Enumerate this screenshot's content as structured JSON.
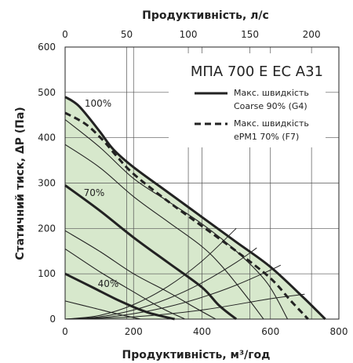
{
  "chart_data": {
    "type": "line",
    "title": "МПА 700 Е ЕС А31",
    "xlabel": "Продуктивність, м³/год",
    "x2label": "Продуктивність, л/с",
    "ylabel": "Статичний тиск, ΔP (Па)",
    "xlim": [
      0,
      800
    ],
    "ylim": [
      0,
      600
    ],
    "x2lim": [
      0,
      222.2
    ],
    "x_ticks": [
      "0",
      "200",
      "400",
      "600",
      "800"
    ],
    "x_tick_values": [
      0,
      200,
      400,
      600,
      800
    ],
    "x2_ticks": [
      "0",
      "50",
      "100",
      "150",
      "200"
    ],
    "x2_tick_values": [
      0,
      50,
      100,
      150,
      200
    ],
    "y_ticks": [
      "0",
      "100",
      "200",
      "300",
      "400",
      "500",
      "600"
    ],
    "y_tick_values": [
      0,
      100,
      200,
      300,
      400,
      500,
      600
    ],
    "grid": true,
    "legend_position": "top-right",
    "fill_color": "#d7e8cc",
    "series": [
      {
        "name": "Макс. швидкість Coarse 90% (G4)",
        "style": "solid-bold",
        "label": "100%",
        "x": [
          0,
          40,
          100,
          140,
          200,
          300,
          400,
          500,
          600,
          700,
          760
        ],
        "y": [
          490,
          470,
          415,
          375,
          335,
          280,
          225,
          170,
          115,
          45,
          0
        ]
      },
      {
        "name": "Макс. швидкість ePM1 70% (F7)",
        "style": "dashed-bold",
        "label": "",
        "x": [
          0,
          60,
          110,
          150,
          200,
          300,
          400,
          500,
          600,
          660,
          710
        ],
        "y": [
          455,
          430,
          395,
          360,
          320,
          260,
          205,
          150,
          90,
          40,
          0
        ]
      },
      {
        "name": "",
        "style": "thin",
        "label": "",
        "x": [
          0,
          100,
          200,
          300,
          400,
          500,
          590,
          650
        ],
        "y": [
          440,
          380,
          310,
          260,
          210,
          150,
          80,
          0
        ]
      },
      {
        "name": "",
        "style": "thin",
        "label": "",
        "x": [
          0,
          100,
          200,
          300,
          400,
          460,
          530,
          580
        ],
        "y": [
          385,
          335,
          270,
          215,
          160,
          115,
          50,
          0
        ]
      },
      {
        "name": "",
        "style": "bold",
        "label": "70%",
        "x": [
          0,
          100,
          200,
          300,
          400,
          450,
          500
        ],
        "y": [
          295,
          240,
          180,
          125,
          70,
          30,
          0
        ]
      },
      {
        "name": "",
        "style": "thin",
        "label": "",
        "x": [
          0,
          100,
          200,
          300,
          380,
          440
        ],
        "y": [
          195,
          150,
          100,
          60,
          25,
          0
        ]
      },
      {
        "name": "",
        "style": "thin",
        "label": "",
        "x": [
          0,
          100,
          200,
          280,
          350
        ],
        "y": [
          155,
          105,
          60,
          25,
          0
        ]
      },
      {
        "name": "",
        "style": "bold",
        "label": "40%",
        "x": [
          0,
          80,
          160,
          240,
          320
        ],
        "y": [
          100,
          70,
          40,
          15,
          0
        ]
      },
      {
        "name": "",
        "style": "thin",
        "label": "",
        "x": [
          0,
          80,
          160,
          220
        ],
        "y": [
          40,
          25,
          10,
          0
        ]
      }
    ],
    "system_curves": [
      {
        "x": [
          0,
          100,
          200,
          300,
          400,
          500
        ],
        "y": [
          0,
          8,
          32,
          72,
          128,
          200
        ]
      },
      {
        "x": [
          0,
          100,
          200,
          300,
          400,
          500,
          560
        ],
        "y": [
          0,
          5,
          20,
          45,
          80,
          125,
          157
        ]
      },
      {
        "x": [
          0,
          100,
          200,
          300,
          400,
          500,
          600,
          630
        ],
        "y": [
          0,
          3,
          12,
          27,
          48,
          75,
          108,
          119
        ]
      },
      {
        "x": [
          0,
          200,
          400,
          600,
          700
        ],
        "y": [
          0,
          5,
          20,
          45,
          55
        ]
      }
    ]
  }
}
